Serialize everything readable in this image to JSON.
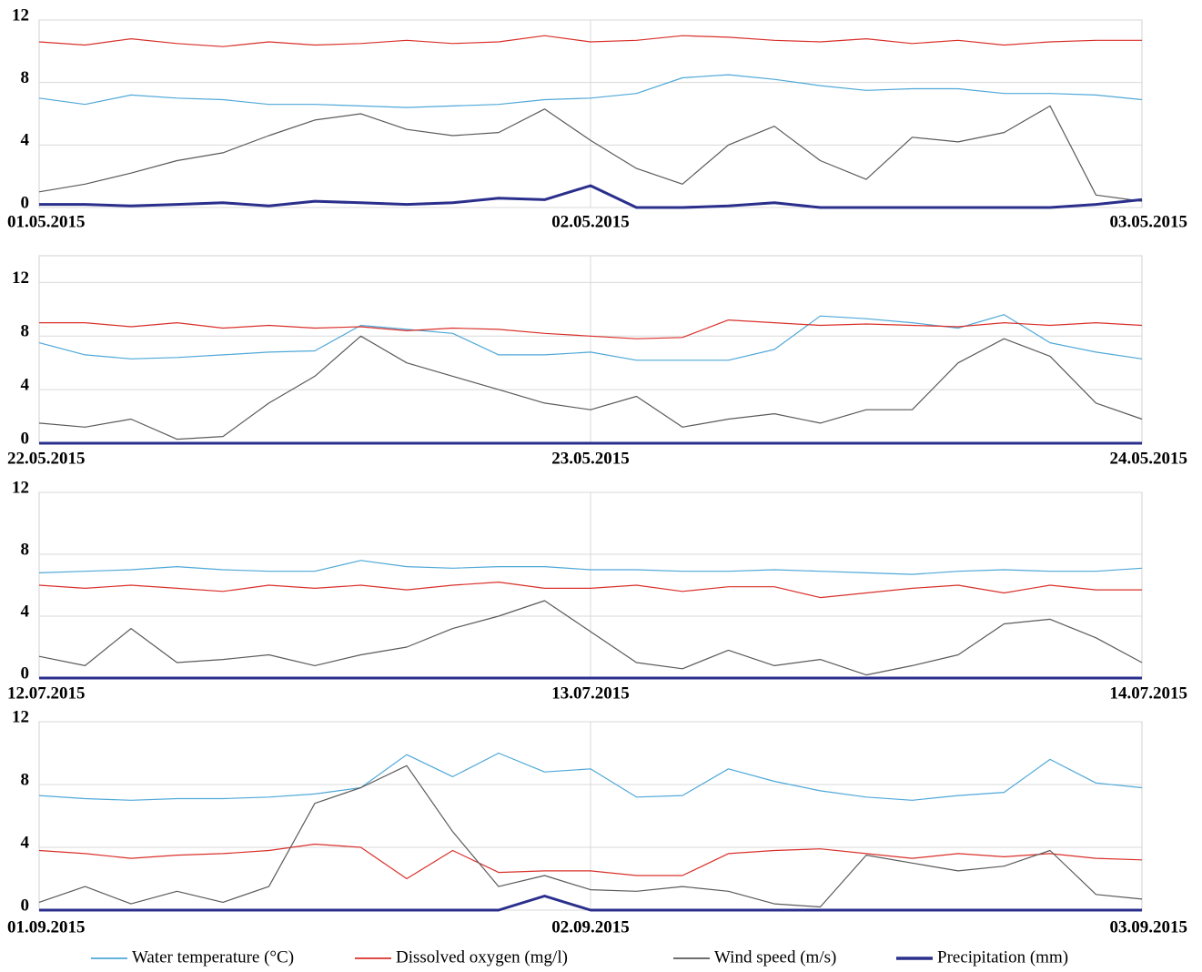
{
  "legend": [
    {
      "name": "Water temperature (°C)",
      "color": "#4fa8d8"
    },
    {
      "name": "Dissolved oxygen (mg/l)",
      "color": "#d9302a"
    },
    {
      "name": "Wind speed (m/s)",
      "color": "#5a5a5a"
    },
    {
      "name": "Precipitation (mm)",
      "color": "#2b2f8c"
    }
  ],
  "chart_data": [
    {
      "type": "line",
      "ylim": [
        0,
        12
      ],
      "yticks": [
        0,
        4,
        8,
        12
      ],
      "grid": true,
      "categories": [
        "01.05.2015",
        null,
        null,
        null,
        null,
        null,
        null,
        null,
        null,
        null,
        null,
        null,
        "02.05.2015",
        null,
        null,
        null,
        null,
        null,
        null,
        null,
        null,
        null,
        null,
        null,
        "03.05.2015"
      ],
      "series": [
        {
          "values": [
            7,
            6.6,
            7.2,
            7,
            6.9,
            6.6,
            6.6,
            6.5,
            6.4,
            6.5,
            6.6,
            6.9,
            7,
            7.3,
            8.3,
            8.5,
            8.2,
            7.8,
            7.5,
            7.6,
            7.6,
            7.3,
            7.3,
            7.2,
            6.9
          ]
        },
        {
          "values": [
            10.6,
            10.4,
            10.8,
            10.5,
            10.3,
            10.6,
            10.4,
            10.5,
            10.7,
            10.5,
            10.6,
            11,
            10.6,
            10.7,
            11,
            10.9,
            10.7,
            10.6,
            10.8,
            10.5,
            10.7,
            10.4,
            10.6,
            10.7,
            10.7
          ]
        },
        {
          "values": [
            1,
            1.5,
            2.2,
            3,
            3.5,
            4.6,
            5.6,
            6,
            5,
            4.6,
            4.8,
            6.3,
            4.3,
            2.5,
            1.5,
            4,
            5.2,
            3,
            1.8,
            4.5,
            4.2,
            4.8,
            6.5,
            0.8,
            0.4
          ]
        },
        {
          "values": [
            0.2,
            0.2,
            0.1,
            0.2,
            0.3,
            0.1,
            0.4,
            0.3,
            0.2,
            0.3,
            0.6,
            0.5,
            1.4,
            0,
            0,
            0.1,
            0.3,
            0,
            0,
            0,
            0,
            0,
            0,
            0.2,
            0.5
          ]
        }
      ]
    },
    {
      "type": "line",
      "ylim": [
        0,
        14
      ],
      "yticks": [
        0,
        4,
        8,
        12
      ],
      "grid": true,
      "categories": [
        "22.05.2015",
        null,
        null,
        null,
        null,
        null,
        null,
        null,
        null,
        null,
        null,
        null,
        "23.05.2015",
        null,
        null,
        null,
        null,
        null,
        null,
        null,
        null,
        null,
        null,
        null,
        "24.05.2015"
      ],
      "series": [
        {
          "values": [
            7.5,
            6.6,
            6.3,
            6.4,
            6.6,
            6.8,
            6.9,
            8.8,
            8.5,
            8.2,
            6.6,
            6.6,
            6.8,
            6.2,
            6.2,
            6.2,
            7,
            9.5,
            9.3,
            9,
            8.6,
            9.6,
            7.5,
            6.8,
            6.3
          ]
        },
        {
          "values": [
            9,
            9,
            8.7,
            9,
            8.6,
            8.8,
            8.6,
            8.7,
            8.4,
            8.6,
            8.5,
            8.2,
            8,
            7.8,
            7.9,
            9.2,
            9,
            8.8,
            8.9,
            8.8,
            8.7,
            9,
            8.8,
            9,
            8.8
          ]
        },
        {
          "values": [
            1.5,
            1.2,
            1.8,
            0.3,
            0.5,
            3,
            5,
            8,
            6,
            5,
            4,
            3,
            2.5,
            3.5,
            1.2,
            1.8,
            2.2,
            1.5,
            2.5,
            2.5,
            6,
            7.8,
            6.5,
            3,
            1.8
          ]
        },
        {
          "values": [
            0,
            0,
            0,
            0,
            0,
            0,
            0,
            0,
            0,
            0,
            0,
            0,
            0,
            0,
            0,
            0,
            0,
            0,
            0,
            0,
            0,
            0,
            0,
            0,
            0
          ]
        }
      ]
    },
    {
      "type": "line",
      "ylim": [
        0,
        12
      ],
      "yticks": [
        0,
        4,
        8,
        12
      ],
      "grid": true,
      "categories": [
        "12.07.2015",
        null,
        null,
        null,
        null,
        null,
        null,
        null,
        null,
        null,
        null,
        null,
        "13.07.2015",
        null,
        null,
        null,
        null,
        null,
        null,
        null,
        null,
        null,
        null,
        null,
        "14.07.2015"
      ],
      "series": [
        {
          "values": [
            6.8,
            6.9,
            7,
            7.2,
            7,
            6.9,
            6.9,
            7.6,
            7.2,
            7.1,
            7.2,
            7.2,
            7,
            7,
            6.9,
            6.9,
            7,
            6.9,
            6.8,
            6.7,
            6.9,
            7,
            6.9,
            6.9,
            7.1
          ]
        },
        {
          "values": [
            6,
            5.8,
            6,
            5.8,
            5.6,
            6,
            5.8,
            6,
            5.7,
            6,
            6.2,
            5.8,
            5.8,
            6,
            5.6,
            5.9,
            5.9,
            5.2,
            5.5,
            5.8,
            6,
            5.5,
            6,
            5.7,
            5.7
          ]
        },
        {
          "values": [
            1.4,
            0.8,
            3.2,
            1,
            1.2,
            1.5,
            0.8,
            1.5,
            2,
            3.2,
            4,
            5,
            3,
            1,
            0.6,
            1.8,
            0.8,
            1.2,
            0.2,
            0.8,
            1.5,
            3.5,
            3.8,
            2.6,
            1
          ]
        },
        {
          "values": [
            0,
            0,
            0,
            0,
            0,
            0,
            0,
            0,
            0,
            0,
            0,
            0,
            0,
            0,
            0,
            0,
            0,
            0,
            0,
            0,
            0,
            0,
            0,
            0,
            0
          ]
        }
      ]
    },
    {
      "type": "line",
      "ylim": [
        0,
        12
      ],
      "yticks": [
        0,
        4,
        8,
        12
      ],
      "grid": true,
      "categories": [
        "01.09.2015",
        null,
        null,
        null,
        null,
        null,
        null,
        null,
        null,
        null,
        null,
        null,
        "02.09.2015",
        null,
        null,
        null,
        null,
        null,
        null,
        null,
        null,
        null,
        null,
        null,
        "03.09.2015"
      ],
      "series": [
        {
          "values": [
            7.3,
            7.1,
            7,
            7.1,
            7.1,
            7.2,
            7.4,
            7.8,
            9.9,
            8.5,
            10,
            8.8,
            9,
            7.2,
            7.3,
            9,
            8.2,
            7.6,
            7.2,
            7,
            7.3,
            7.5,
            9.6,
            8.1,
            7.8
          ]
        },
        {
          "values": [
            3.8,
            3.6,
            3.3,
            3.5,
            3.6,
            3.8,
            4.2,
            4,
            2,
            3.8,
            2.4,
            2.5,
            2.5,
            2.2,
            2.2,
            3.6,
            3.8,
            3.9,
            3.6,
            3.3,
            3.6,
            3.4,
            3.6,
            3.3,
            3.2
          ]
        },
        {
          "values": [
            0.5,
            1.5,
            0.4,
            1.2,
            0.5,
            1.5,
            6.8,
            7.8,
            9.2,
            5,
            1.5,
            2.2,
            1.3,
            1.2,
            1.5,
            1.2,
            0.4,
            0.2,
            3.5,
            3,
            2.5,
            2.8,
            3.8,
            1,
            0.7
          ]
        },
        {
          "values": [
            0,
            0,
            0,
            0,
            0,
            0,
            0,
            0,
            0,
            0,
            0,
            0.9,
            0,
            0,
            0,
            0,
            0,
            0,
            0,
            0,
            0,
            0,
            0,
            0,
            0
          ]
        }
      ]
    }
  ]
}
